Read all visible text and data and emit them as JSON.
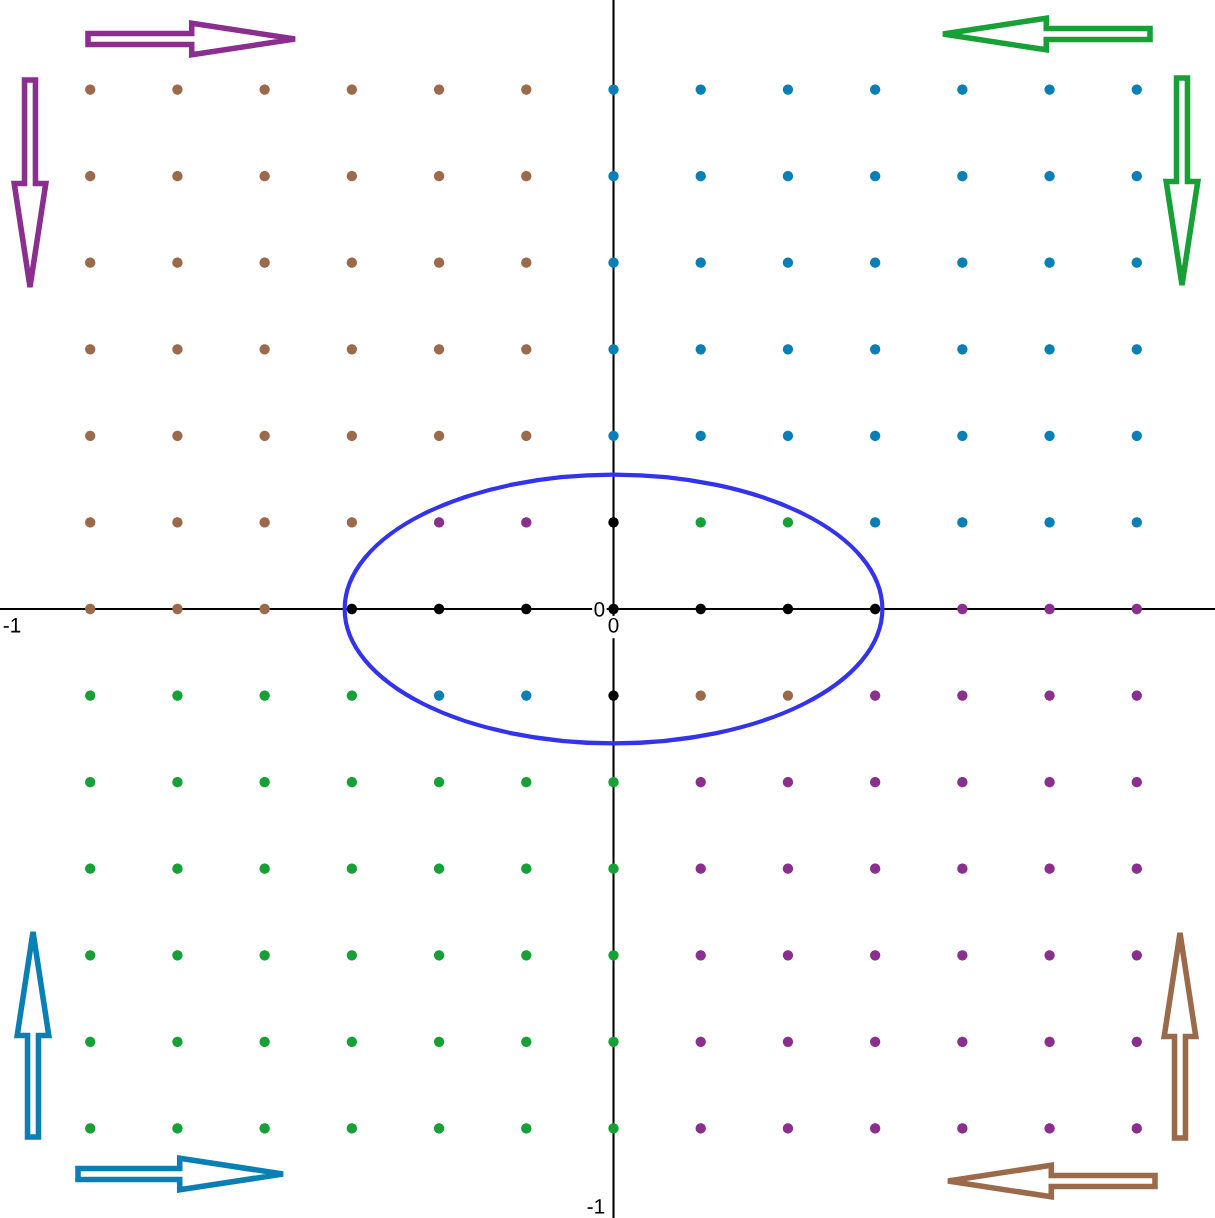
{
  "chart_data": {
    "type": "scatter",
    "marker": "circle",
    "grid": false,
    "xlim": [
      -1.02,
      1.0
    ],
    "ylim": [
      -1.02,
      1.02
    ],
    "xticks": [
      -1,
      0
    ],
    "yticks": [
      -1,
      0
    ],
    "series": [
      {
        "color": "#9b6a4a",
        "x": [
          -0.87,
          -0.725,
          -0.58,
          -0.435,
          -0.29,
          -0.145,
          -0.87,
          -0.725,
          -0.58,
          -0.435,
          -0.29,
          -0.145,
          -0.87,
          -0.725,
          -0.58,
          -0.435,
          -0.29,
          -0.145,
          -0.87,
          -0.725,
          -0.58,
          -0.435,
          -0.29,
          -0.145,
          -0.87,
          -0.725,
          -0.58,
          -0.435,
          -0.29,
          -0.145,
          -0.87,
          -0.725,
          -0.58,
          -0.435,
          -0.87,
          -0.725,
          -0.58,
          0.145,
          0.29
        ],
        "values": [
          0.87,
          0.87,
          0.87,
          0.87,
          0.87,
          0.87,
          0.725,
          0.725,
          0.725,
          0.725,
          0.725,
          0.725,
          0.58,
          0.58,
          0.58,
          0.58,
          0.58,
          0.58,
          0.435,
          0.435,
          0.435,
          0.435,
          0.435,
          0.435,
          0.29,
          0.29,
          0.29,
          0.29,
          0.29,
          0.29,
          0.145,
          0.145,
          0.145,
          0.145,
          0,
          0,
          0,
          -0.145,
          -0.145
        ]
      },
      {
        "color": "#0a7fb5",
        "x": [
          0,
          0.145,
          0.29,
          0.435,
          0.58,
          0.725,
          0.87,
          0,
          0.145,
          0.29,
          0.435,
          0.58,
          0.725,
          0.87,
          0,
          0.145,
          0.29,
          0.435,
          0.58,
          0.725,
          0.87,
          0,
          0.145,
          0.29,
          0.435,
          0.58,
          0.725,
          0.87,
          0,
          0.145,
          0.29,
          0.435,
          0.58,
          0.725,
          0.87,
          0.435,
          0.58,
          0.725,
          0.87,
          -0.29,
          -0.145
        ],
        "values": [
          0.87,
          0.87,
          0.87,
          0.87,
          0.87,
          0.87,
          0.87,
          0.725,
          0.725,
          0.725,
          0.725,
          0.725,
          0.725,
          0.725,
          0.58,
          0.58,
          0.58,
          0.58,
          0.58,
          0.58,
          0.58,
          0.435,
          0.435,
          0.435,
          0.435,
          0.435,
          0.435,
          0.435,
          0.29,
          0.29,
          0.29,
          0.29,
          0.29,
          0.29,
          0.29,
          0.145,
          0.145,
          0.145,
          0.145,
          -0.145,
          -0.145
        ]
      },
      {
        "color": "#000000",
        "x": [
          0,
          -0.435,
          -0.29,
          -0.145,
          0,
          0.145,
          0.29,
          0.435,
          0
        ],
        "values": [
          0.145,
          0,
          0,
          0,
          0,
          0,
          0,
          0,
          -0.145
        ]
      },
      {
        "color": "#8b2f8f",
        "x": [
          -0.29,
          -0.145,
          0.58,
          0.725,
          0.87,
          0.435,
          0.58,
          0.725,
          0.87,
          0.145,
          0.29,
          0.435,
          0.58,
          0.725,
          0.87,
          0.145,
          0.29,
          0.435,
          0.58,
          0.725,
          0.87,
          0.145,
          0.29,
          0.435,
          0.58,
          0.725,
          0.87,
          0.145,
          0.29,
          0.435,
          0.58,
          0.725,
          0.87,
          0.145,
          0.29,
          0.435,
          0.58,
          0.725,
          0.87
        ],
        "values": [
          0.145,
          0.145,
          0,
          0,
          0,
          -0.145,
          -0.145,
          -0.145,
          -0.145,
          -0.29,
          -0.29,
          -0.29,
          -0.29,
          -0.29,
          -0.29,
          -0.435,
          -0.435,
          -0.435,
          -0.435,
          -0.435,
          -0.435,
          -0.58,
          -0.58,
          -0.58,
          -0.58,
          -0.58,
          -0.58,
          -0.725,
          -0.725,
          -0.725,
          -0.725,
          -0.725,
          -0.725,
          -0.87,
          -0.87,
          -0.87,
          -0.87,
          -0.87,
          -0.87
        ]
      },
      {
        "color": "#16a035",
        "x": [
          0.145,
          0.29,
          -0.87,
          -0.725,
          -0.58,
          -0.435,
          -0.87,
          -0.725,
          -0.58,
          -0.435,
          -0.29,
          -0.145,
          0,
          -0.87,
          -0.725,
          -0.58,
          -0.435,
          -0.29,
          -0.145,
          0,
          -0.87,
          -0.725,
          -0.58,
          -0.435,
          -0.29,
          -0.145,
          0,
          -0.87,
          -0.725,
          -0.58,
          -0.435,
          -0.29,
          -0.145,
          0,
          -0.87,
          -0.725,
          -0.58,
          -0.435,
          -0.29,
          -0.145,
          0
        ],
        "values": [
          0.145,
          0.145,
          -0.145,
          -0.145,
          -0.145,
          -0.145,
          -0.29,
          -0.29,
          -0.29,
          -0.29,
          -0.29,
          -0.29,
          -0.29,
          -0.435,
          -0.435,
          -0.435,
          -0.435,
          -0.435,
          -0.435,
          -0.435,
          -0.58,
          -0.58,
          -0.58,
          -0.58,
          -0.58,
          -0.58,
          -0.58,
          -0.725,
          -0.725,
          -0.725,
          -0.725,
          -0.725,
          -0.725,
          -0.725,
          -0.87,
          -0.87,
          -0.87,
          -0.87,
          -0.87,
          -0.87,
          -0.87
        ]
      }
    ]
  }
}
